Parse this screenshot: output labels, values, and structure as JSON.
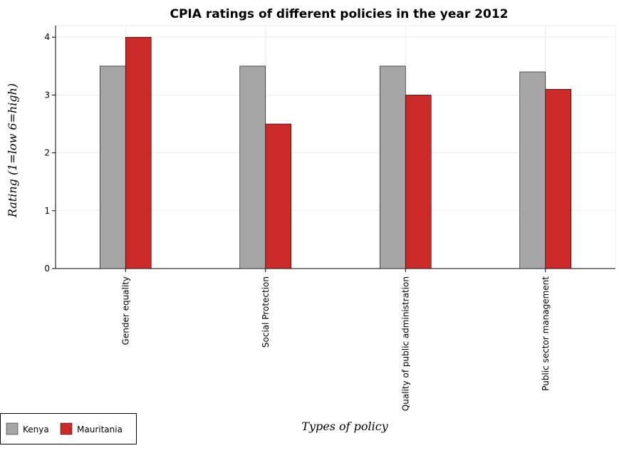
{
  "chart_data": {
    "type": "bar",
    "title": "CPIA ratings of different policies in the year 2012",
    "xlabel": "Types of policy",
    "ylabel": "Rating (1=low 6=high)",
    "categories": [
      "Gender equality",
      "Social Protection",
      "Quality of public administration",
      "Public sector management"
    ],
    "series": [
      {
        "name": "Kenya",
        "values": [
          3.5,
          3.5,
          3.5,
          3.4
        ],
        "color": "#a6a6a6"
      },
      {
        "name": "Mauritania",
        "values": [
          4.0,
          2.5,
          3.0,
          3.1
        ],
        "color": "#cc2929"
      }
    ],
    "ylim": [
      0,
      4.2
    ],
    "yticks": [
      "0",
      "1",
      "2",
      "3",
      "4"
    ],
    "grid": true,
    "legend": "bottom-left"
  }
}
